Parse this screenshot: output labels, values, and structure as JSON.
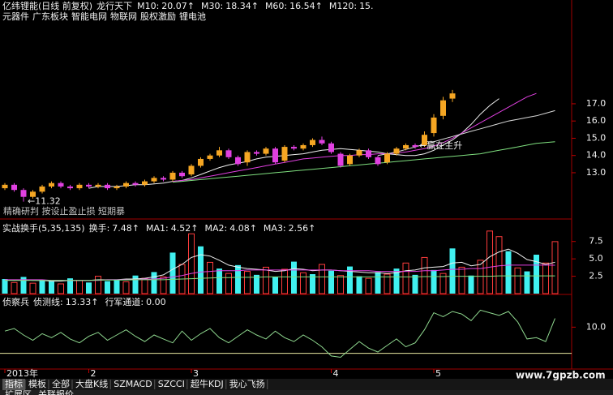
{
  "chart_data": [
    {
      "type": "candlestick",
      "title": "亿纬锂能(日线 前复权)",
      "subtitle": "龙行天下",
      "tags": [
        "元器件",
        "广东板块",
        "智能电网",
        "物联网",
        "股权激励",
        "锂电池"
      ],
      "categories": [
        "2013年",
        null,
        null,
        null,
        null,
        null,
        null,
        null,
        null,
        "2",
        null,
        null,
        null,
        null,
        null,
        null,
        null,
        null,
        null,
        null,
        "3",
        null,
        null,
        null,
        null,
        null,
        null,
        null,
        null,
        null,
        null,
        null,
        null,
        null,
        null,
        "4",
        null,
        null,
        null,
        null,
        null,
        null,
        null,
        null,
        null,
        null,
        "5",
        null,
        null,
        null,
        null,
        null,
        null,
        null,
        null,
        null,
        null,
        null,
        null,
        null
      ],
      "open": [
        12.1,
        12.3,
        12.0,
        11.6,
        11.9,
        12.2,
        12.4,
        12.2,
        12.1,
        12.3,
        12.2,
        12.3,
        12.1,
        12.2,
        12.4,
        12.3,
        12.5,
        12.7,
        12.6,
        13.0,
        12.9,
        13.4,
        13.8,
        14.0,
        14.3,
        13.9,
        13.6,
        14.2,
        14.1,
        14.4,
        13.7,
        14.5,
        14.4,
        14.6,
        14.9,
        14.7,
        14.1,
        13.5,
        14.0,
        14.3,
        13.9,
        13.6,
        14.1,
        14.4,
        14.6,
        14.6,
        15.3,
        16.3,
        17.3,
        null,
        null,
        null,
        null,
        null,
        null,
        null,
        null,
        null,
        null,
        null
      ],
      "high": [
        12.4,
        12.4,
        12.1,
        12.0,
        12.3,
        12.5,
        12.5,
        12.3,
        12.4,
        12.4,
        12.4,
        12.4,
        12.3,
        12.5,
        12.5,
        12.6,
        12.8,
        12.8,
        13.1,
        13.1,
        13.5,
        13.9,
        14.1,
        14.5,
        14.4,
        14.0,
        14.3,
        14.3,
        14.5,
        14.5,
        14.6,
        14.6,
        14.7,
        15.0,
        15.1,
        14.8,
        14.2,
        14.1,
        14.4,
        14.4,
        14.0,
        14.2,
        14.5,
        14.7,
        14.7,
        15.4,
        16.4,
        17.4,
        17.8,
        null,
        null,
        null,
        null,
        null,
        null,
        null,
        null,
        null,
        null,
        null
      ],
      "low": [
        12.0,
        11.9,
        11.32,
        11.5,
        11.8,
        12.1,
        12.1,
        12.0,
        12.0,
        12.1,
        12.1,
        12.0,
        12.0,
        12.1,
        12.2,
        12.2,
        12.4,
        12.5,
        12.5,
        12.7,
        12.8,
        13.3,
        13.7,
        13.9,
        13.8,
        13.4,
        13.4,
        14.0,
        14.0,
        13.5,
        13.6,
        14.3,
        14.3,
        14.5,
        14.6,
        14.1,
        13.3,
        13.4,
        13.9,
        13.8,
        13.4,
        13.5,
        14.0,
        14.3,
        14.4,
        14.5,
        15.1,
        16.1,
        17.1,
        null,
        null,
        null,
        null,
        null,
        null,
        null,
        null,
        null,
        null,
        null
      ],
      "close": [
        12.3,
        12.0,
        11.6,
        11.9,
        12.2,
        12.4,
        12.2,
        12.1,
        12.3,
        12.2,
        12.3,
        12.1,
        12.2,
        12.4,
        12.3,
        12.5,
        12.7,
        12.6,
        13.0,
        12.8,
        13.4,
        13.8,
        14.0,
        14.3,
        13.9,
        13.5,
        14.2,
        14.1,
        14.4,
        13.6,
        14.5,
        14.4,
        14.6,
        14.9,
        14.7,
        14.2,
        13.4,
        14.0,
        14.3,
        13.9,
        13.5,
        14.1,
        14.4,
        14.6,
        14.5,
        15.2,
        16.2,
        17.2,
        17.6,
        null,
        null,
        null,
        null,
        null,
        null,
        null,
        null,
        null,
        null,
        null
      ],
      "up_color": "#f5a623",
      "down_color": "#e040e0",
      "series": [
        {
          "name": "M10:",
          "readout": "20.07↑",
          "color": "#f0f0f0",
          "values": [
            null,
            null,
            null,
            null,
            null,
            null,
            null,
            null,
            null,
            12.1,
            12.2,
            12.2,
            12.2,
            12.25,
            12.3,
            12.3,
            12.35,
            12.4,
            12.5,
            12.55,
            12.7,
            12.9,
            13.1,
            13.3,
            13.45,
            13.55,
            13.65,
            13.8,
            13.9,
            13.95,
            14.0,
            14.05,
            14.1,
            14.2,
            14.3,
            14.35,
            14.4,
            14.35,
            14.3,
            14.25,
            14.2,
            14.1,
            14.05,
            14.0,
            14.0,
            14.1,
            14.3,
            14.6,
            14.9,
            15.3,
            15.8,
            16.4,
            16.9,
            17.3,
            null,
            null,
            null,
            null,
            null,
            null
          ]
        },
        {
          "name": "M30:",
          "readout": "18.34↑",
          "color": "#e040e0",
          "values": [
            null,
            null,
            null,
            null,
            null,
            null,
            null,
            null,
            null,
            null,
            null,
            null,
            null,
            null,
            null,
            null,
            null,
            null,
            12.5,
            12.55,
            12.6,
            12.7,
            12.8,
            12.9,
            13.0,
            13.1,
            13.2,
            13.3,
            13.4,
            13.5,
            13.6,
            13.7,
            13.8,
            13.85,
            13.9,
            13.95,
            14.0,
            14.0,
            14.05,
            14.05,
            14.1,
            14.1,
            14.15,
            14.2,
            14.3,
            14.4,
            14.55,
            14.75,
            15.0,
            15.3,
            15.6,
            15.9,
            16.2,
            16.5,
            16.8,
            17.1,
            17.4,
            17.6,
            null,
            null
          ]
        },
        {
          "name": "M60:",
          "readout": "16.54↑",
          "color": "#d8d8d8",
          "values": [
            null,
            null,
            null,
            null,
            null,
            null,
            null,
            null,
            null,
            null,
            null,
            null,
            null,
            null,
            null,
            null,
            null,
            null,
            null,
            null,
            null,
            null,
            null,
            null,
            null,
            null,
            null,
            null,
            null,
            null,
            null,
            null,
            null,
            null,
            null,
            null,
            null,
            null,
            null,
            null,
            14.0,
            14.1,
            14.2,
            14.35,
            14.5,
            14.65,
            14.8,
            14.95,
            15.1,
            15.25,
            15.4,
            15.55,
            15.7,
            15.85,
            16.0,
            16.1,
            16.2,
            16.3,
            16.45,
            16.6
          ]
        },
        {
          "name": "M120:",
          "readout": "15.",
          "color": "#7fe07f",
          "values": [
            null,
            null,
            null,
            null,
            null,
            null,
            null,
            null,
            null,
            null,
            null,
            null,
            null,
            null,
            null,
            null,
            null,
            null,
            12.45,
            12.5,
            12.55,
            12.6,
            12.65,
            12.7,
            12.75,
            12.8,
            12.85,
            12.9,
            12.95,
            13.0,
            13.05,
            13.1,
            13.15,
            13.2,
            13.25,
            13.3,
            13.35,
            13.4,
            13.45,
            13.5,
            13.55,
            13.6,
            13.65,
            13.7,
            13.75,
            13.8,
            13.85,
            13.9,
            13.95,
            14.0,
            14.05,
            14.1,
            14.2,
            14.3,
            14.4,
            14.5,
            14.6,
            14.7,
            14.75,
            14.8
          ]
        }
      ],
      "annotations": [
        {
          "text": "←11.32",
          "x": 2,
          "y": 11.32
        },
        {
          "text": "←赢在主升",
          "x": 44,
          "y": 14.55
        }
      ],
      "overlay": "精确研判 按设止盈止损   短期暴",
      "ylim": [
        10.88,
        23.02
      ],
      "yticks": [
        {
          "value": 13,
          "label": "13.0"
        },
        {
          "value": 14,
          "label": "14.0"
        },
        {
          "value": 15,
          "label": "15.0"
        },
        {
          "value": 16,
          "label": "16.0"
        },
        {
          "value": 17,
          "label": "17.0"
        }
      ]
    },
    {
      "type": "bar",
      "title": "实战换手(5,35,135)",
      "name": "换手:",
      "readout": "7.48↑",
      "color": "#f0e040",
      "values": [
        2.1,
        1.6,
        2.4,
        1.5,
        2.0,
        1.8,
        1.4,
        2.2,
        1.9,
        1.6,
        2.5,
        1.8,
        2.0,
        1.7,
        2.6,
        2.2,
        3.1,
        2.4,
        5.9,
        4.2,
        8.6,
        6.8,
        4.5,
        3.6,
        2.9,
        4.1,
        3.2,
        2.7,
        3.8,
        2.4,
        3.5,
        4.6,
        3.0,
        2.8,
        4.2,
        3.3,
        2.6,
        3.9,
        2.5,
        2.2,
        3.1,
        2.8,
        3.6,
        4.4,
        2.7,
        5.2,
        3.4,
        2.9,
        6.5,
        3.8,
        2.6,
        4.8,
        9.0,
        8.2,
        6.1,
        3.7,
        3.2,
        5.6,
        4.4,
        7.48
      ],
      "bar_colors": [
        "#40f0f0",
        "#ff3c3c",
        "#40f0f0",
        "#ff3c3c",
        "#40f0f0",
        "#40f0f0",
        "#ff3c3c",
        "#40f0f0",
        "#ff3c3c",
        "#40f0f0",
        "#ff3c3c",
        "#40f0f0",
        "#40f0f0",
        "#ff3c3c",
        "#40f0f0",
        "#ff3c3c",
        "#40f0f0",
        "#ff3c3c",
        "#40f0f0",
        "#ff3c3c",
        "#ff3c3c",
        "#40f0f0",
        "#ff3c3c",
        "#40f0f0",
        "#ff3c3c",
        "#40f0f0",
        "#ff3c3c",
        "#40f0f0",
        "#ff3c3c",
        "#40f0f0",
        "#ff3c3c",
        "#40f0f0",
        "#ff3c3c",
        "#40f0f0",
        "#ff3c3c",
        "#40f0f0",
        "#ff3c3c",
        "#40f0f0",
        "#40f0f0",
        "#ff3c3c",
        "#40f0f0",
        "#ff3c3c",
        "#40f0f0",
        "#ff3c3c",
        "#40f0f0",
        "#ff3c3c",
        "#40f0f0",
        "#ff3c3c",
        "#40f0f0",
        "#ff3c3c",
        "#40f0f0",
        "#ff3c3c",
        "#ff3c3c",
        "#ff3c3c",
        "#40f0f0",
        "#ff3c3c",
        "#40f0f0",
        "#40f0f0",
        "#ff3c3c",
        "#ff3c3c"
      ],
      "hollow_colors": [
        "#ff3c3c"
      ],
      "series": [
        {
          "name": "MA1:",
          "readout": "4.52↑",
          "color": "#f0f0f0",
          "values": [
            2.0,
            1.9,
            2.0,
            1.9,
            1.9,
            1.8,
            1.8,
            1.9,
            1.9,
            1.9,
            2.0,
            2.0,
            2.0,
            2.1,
            2.1,
            2.2,
            2.4,
            2.7,
            3.5,
            4.2,
            5.2,
            5.6,
            5.4,
            4.8,
            4.1,
            3.8,
            3.6,
            3.5,
            3.4,
            3.2,
            3.3,
            3.6,
            3.5,
            3.3,
            3.4,
            3.4,
            3.3,
            3.2,
            3.1,
            3.0,
            3.0,
            2.9,
            3.0,
            3.3,
            3.4,
            3.7,
            3.8,
            3.9,
            4.4,
            4.5,
            4.0,
            4.2,
            5.3,
            6.0,
            6.4,
            5.8,
            4.9,
            4.6,
            4.2,
            4.52
          ]
        },
        {
          "name": "MA2:",
          "readout": "4.08↑",
          "color": "#e040e0",
          "values": [
            2.0,
            2.0,
            2.0,
            2.0,
            2.0,
            1.9,
            1.9,
            1.9,
            1.9,
            1.9,
            1.9,
            2.0,
            2.0,
            2.0,
            2.0,
            2.1,
            2.1,
            2.2,
            2.4,
            2.6,
            2.9,
            3.1,
            3.2,
            3.3,
            3.3,
            3.3,
            3.4,
            3.4,
            3.4,
            3.4,
            3.4,
            3.4,
            3.4,
            3.4,
            3.4,
            3.4,
            3.3,
            3.3,
            3.3,
            3.3,
            3.2,
            3.2,
            3.2,
            3.2,
            3.2,
            3.3,
            3.3,
            3.4,
            3.5,
            3.5,
            3.6,
            3.6,
            3.8,
            4.0,
            4.1,
            4.1,
            4.1,
            4.1,
            4.1,
            4.08
          ]
        },
        {
          "name": "MA3:",
          "readout": "2.56↑",
          "color": "#7fe07f",
          "values": [
            1.9,
            1.9,
            1.9,
            1.9,
            1.9,
            1.9,
            1.9,
            1.9,
            1.9,
            1.9,
            1.95,
            1.95,
            1.95,
            1.95,
            2.0,
            2.0,
            2.0,
            2.0,
            2.05,
            2.1,
            2.15,
            2.2,
            2.25,
            2.3,
            2.3,
            2.35,
            2.35,
            2.35,
            2.4,
            2.4,
            2.4,
            2.4,
            2.4,
            2.4,
            2.4,
            2.4,
            2.4,
            2.4,
            2.4,
            2.4,
            2.4,
            2.4,
            2.4,
            2.4,
            2.4,
            2.45,
            2.45,
            2.45,
            2.5,
            2.5,
            2.5,
            2.5,
            2.5,
            2.55,
            2.55,
            2.55,
            2.55,
            2.55,
            2.56,
            2.56
          ]
        }
      ],
      "ylim": [
        0,
        10.5
      ],
      "yticks": [
        {
          "value": 2.5,
          "label": "2.5"
        },
        {
          "value": 5,
          "label": "5.0"
        },
        {
          "value": 7.5,
          "label": "7.5"
        }
      ]
    },
    {
      "type": "line",
      "title": "侦察兵",
      "series": [
        {
          "name": "侦测线:",
          "readout": "13.33↑",
          "color": "#8fd88f",
          "values": [
            8.5,
            9.5,
            7.0,
            5.0,
            7.5,
            6.0,
            8.0,
            5.5,
            4.0,
            6.5,
            8.0,
            5.0,
            7.0,
            9.0,
            6.5,
            4.5,
            7.0,
            5.5,
            4.0,
            8.5,
            5.0,
            7.5,
            9.5,
            6.0,
            4.0,
            6.5,
            9.0,
            7.0,
            5.5,
            8.5,
            6.0,
            4.5,
            7.0,
            5.0,
            2.5,
            -1.0,
            -1.5,
            1.5,
            4.5,
            2.0,
            0.5,
            3.0,
            5.5,
            2.5,
            4.0,
            9.0,
            15.5,
            14.0,
            16.0,
            15.0,
            12.5,
            16.5,
            15.5,
            14.5,
            16.0,
            12.0,
            5.5,
            6.0,
            4.5,
            13.33
          ]
        }
      ],
      "channel": {
        "name": "行军通道:",
        "readout": "0.00",
        "value": 0,
        "color": "#e8e8a0"
      },
      "ylim": [
        -6,
        22.5
      ],
      "yticks": [
        {
          "value": 10,
          "label": "10.0"
        }
      ]
    }
  ],
  "tabs": [
    "指标",
    "模板",
    "全部",
    "大盘K线",
    "SZMACD",
    "SZCCI",
    "超牛KDJ",
    "我心飞扬"
  ],
  "status_bar": [
    "扩展区",
    "关联报价"
  ],
  "watermark": "www.7gpzb.com"
}
